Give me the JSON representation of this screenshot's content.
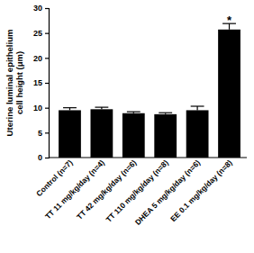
{
  "chart_data": {
    "type": "bar",
    "y_label": "Uterine luminal epithelium\ncell height (μm)",
    "categories": [
      "Control (n=7)",
      "TT 11 mg/kg/day (n=4)",
      "TT 42 mg/kg/day (n=6)",
      "TT 110 mg/kg/day (n=8)",
      "DHEA 5 mg/kg/day (n=6)",
      "EE 0.1 mg/kg/day (n=8)"
    ],
    "values": [
      9.5,
      9.7,
      8.9,
      8.7,
      9.5,
      25.7
    ],
    "errors": [
      0.5,
      0.4,
      0.3,
      0.3,
      0.8,
      1.2
    ],
    "color": "#000000",
    "ylim": [
      0,
      30
    ],
    "yticks": [
      0,
      5,
      10,
      15,
      20,
      25,
      30
    ],
    "grid": false,
    "annotations": [
      {
        "text": "*",
        "x": "EE 0.1 mg/kg/day (n=8)"
      }
    ]
  }
}
